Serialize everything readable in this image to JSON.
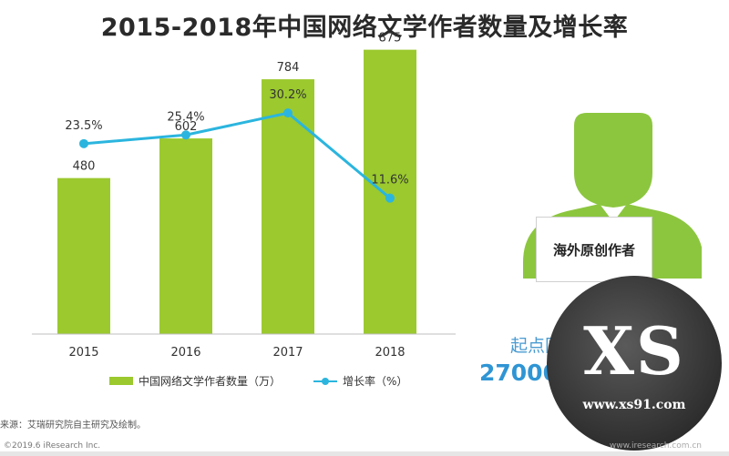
{
  "title": "2015-2018年中国网络文学作者数量及增长率",
  "chart_data": {
    "type": "bar",
    "categories": [
      "2015",
      "2016",
      "2017",
      "2018"
    ],
    "series": [
      {
        "name": "中国网络文学作者数量（万）",
        "type": "bar",
        "values": [
          480,
          602,
          784,
          875
        ],
        "labels": [
          "480",
          "602",
          "784",
          "875"
        ]
      },
      {
        "name": "增长率（%）",
        "type": "line",
        "values": [
          23.5,
          25.4,
          30.2,
          11.6
        ],
        "labels": [
          "23.5%",
          "25.4%",
          "30.2%",
          "11.6%"
        ]
      }
    ],
    "ylim_bar": [
      0,
      1000
    ],
    "ylim_line": [
      0,
      35
    ],
    "grid": false,
    "legend_position": "bottom"
  },
  "colors": {
    "bar": "#9bc92e",
    "line": "#2bb5de",
    "stat": "#2f95d4"
  },
  "legend": {
    "bar_label": "中国网络文学作者数量（万）",
    "line_label": "增长率（%）"
  },
  "source": "来源：艾瑞研究院自主研究及绘制。",
  "copyright": "©2019.6 iResearch Inc.",
  "footer_site": "www.iresearch.com.cn",
  "side_panel": {
    "icon": "author-person-icon",
    "sign_text": "海外原创作者",
    "line1": "起点国际拥有超过",
    "line2": "27000名海外原创作者"
  },
  "watermark": {
    "letters": "XS",
    "url": "www.xs91.com"
  }
}
